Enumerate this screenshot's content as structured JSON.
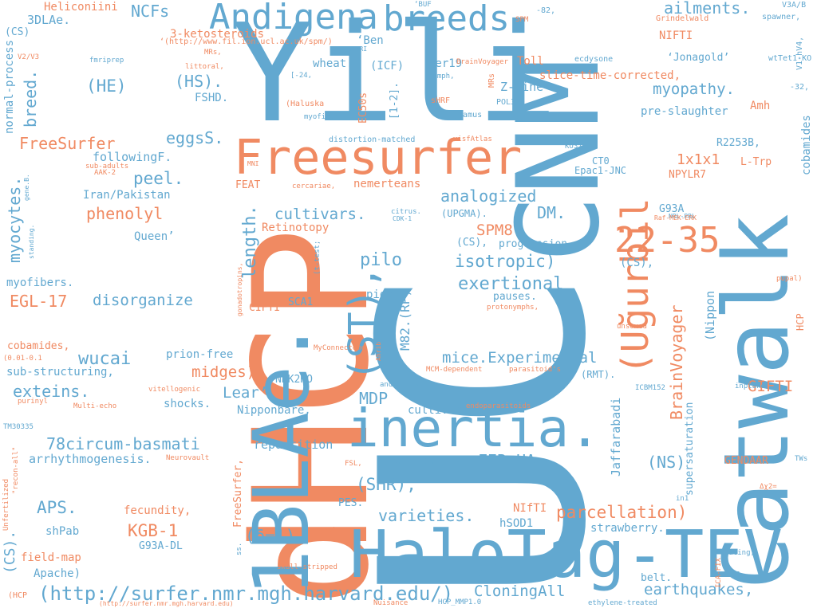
{
  "palette": {
    "orange": "#f08a62",
    "blue": "#62a8d0"
  },
  "words": [
    {
      "id": "w1",
      "text": "dHCP",
      "color": "orange"
    },
    {
      "id": "w2",
      "text": "UC",
      "color": "blue"
    },
    {
      "id": "w3",
      "text": "Catwalk",
      "color": "blue"
    },
    {
      "id": "w4",
      "text": "Yili",
      "color": "blue"
    },
    {
      "id": "w5",
      "text": "CNM",
      "color": "blue"
    },
    {
      "id": "w6",
      "text": "1BLAe.",
      "color": "blue"
    },
    {
      "id": "w7",
      "text": "HaloTag-TEV",
      "color": "blue"
    },
    {
      "id": "w8",
      "text": "Freesurfer",
      "color": "orange"
    },
    {
      "id": "w9",
      "text": "inertia.",
      "color": "blue"
    },
    {
      "id": "w10",
      "text": "Andigena",
      "color": "blue"
    },
    {
      "id": "w11",
      "text": "breeds.",
      "color": "blue"
    },
    {
      "id": "w12",
      "text": "(ST),",
      "color": "blue"
    },
    {
      "id": "w13",
      "text": "(Uğurbil",
      "color": "orange"
    },
    {
      "id": "w14",
      "text": "22-35",
      "color": "orange"
    },
    {
      "id": "w15",
      "text": "length.",
      "color": "blue"
    },
    {
      "id": "w16",
      "text": "(http://surfer.nmr.mgh.harvard.edu/)",
      "color": "blue"
    },
    {
      "id": "w17",
      "text": "78circum-basmati",
      "color": "blue"
    },
    {
      "id": "w18",
      "text": "isotropic)",
      "color": "blue"
    },
    {
      "id": "w19",
      "text": "exertional",
      "color": "blue"
    },
    {
      "id": "w20",
      "text": "parcellation)",
      "color": "orange"
    },
    {
      "id": "w21",
      "text": "mice.Experimental",
      "color": "blue"
    },
    {
      "id": "w22",
      "text": "analogized",
      "color": "blue"
    },
    {
      "id": "w23",
      "text": "cultivars.",
      "color": "blue"
    },
    {
      "id": "w24",
      "text": "disorganize",
      "color": "blue"
    },
    {
      "id": "w25",
      "text": "exteins.",
      "color": "blue"
    },
    {
      "id": "w26",
      "text": "wucai",
      "color": "blue"
    },
    {
      "id": "w27",
      "text": "FreeSurfer",
      "color": "orange"
    },
    {
      "id": "w28",
      "text": "phenolyl",
      "color": "orange"
    },
    {
      "id": "w29",
      "text": "peel.",
      "color": "blue"
    },
    {
      "id": "w30",
      "text": "eggsS.",
      "color": "blue"
    },
    {
      "id": "w31",
      "text": "(HS).",
      "color": "blue"
    },
    {
      "id": "w32",
      "text": "(HE)",
      "color": "blue"
    },
    {
      "id": "w33",
      "text": "NCFs",
      "color": "blue"
    },
    {
      "id": "w34",
      "text": "ailments.",
      "color": "blue"
    },
    {
      "id": "w35",
      "text": "myopathy.",
      "color": "blue"
    },
    {
      "id": "w36",
      "text": "BrainVoyager",
      "color": "orange"
    },
    {
      "id": "w37",
      "text": "earthquakes,",
      "color": "blue"
    },
    {
      "id": "w38",
      "text": "CloningAll",
      "color": "blue"
    },
    {
      "id": "w39",
      "text": "varieties.",
      "color": "blue"
    },
    {
      "id": "w40",
      "text": "(SHR),",
      "color": "blue"
    },
    {
      "id": "w41",
      "text": "FER-HA",
      "color": "blue"
    },
    {
      "id": "w42",
      "text": "KGB-1",
      "color": "orange"
    },
    {
      "id": "w43",
      "text": "(δ=1)",
      "color": "blue"
    },
    {
      "id": "w44",
      "text": "APS.",
      "color": "blue"
    },
    {
      "id": "w45",
      "text": "EGL-17",
      "color": "orange"
    },
    {
      "id": "w46",
      "text": "myocytes.",
      "color": "blue"
    },
    {
      "id": "w47",
      "text": "breed.",
      "color": "blue"
    },
    {
      "id": "w48",
      "text": "MDP",
      "color": "blue"
    },
    {
      "id": "w49",
      "text": "pilo",
      "color": "blue"
    },
    {
      "id": "w50",
      "text": "SPM8",
      "color": "orange"
    },
    {
      "id": "w51",
      "text": "DM.",
      "color": "blue"
    },
    {
      "id": "w52",
      "text": "1x1x1",
      "color": "orange"
    },
    {
      "id": "w53",
      "text": "GIFTI",
      "color": "orange"
    },
    {
      "id": "w54",
      "text": "(NS)",
      "color": "blue"
    },
    {
      "id": "w55",
      "text": "midges)",
      "color": "orange"
    },
    {
      "id": "w56",
      "text": "Lear’,",
      "color": "blue"
    },
    {
      "id": "w57",
      "text": "M82.(RP)",
      "color": "blue"
    },
    {
      "id": "w58",
      "text": "(CS).",
      "color": "blue"
    },
    {
      "id": "w59",
      "text": "(CS),",
      "color": "blue"
    },
    {
      "id": "w60",
      "text": "Retinotopy",
      "color": "orange"
    },
    {
      "id": "w61",
      "text": "Jaffarabadi",
      "color": "blue"
    },
    {
      "id": "w62",
      "text": "supersaturation",
      "color": "blue"
    },
    {
      "id": "w63",
      "text": "(Nippon",
      "color": "blue"
    },
    {
      "id": "w64",
      "text": "cobamides",
      "color": "blue"
    },
    {
      "id": "w65",
      "text": "Heliconiini",
      "color": "orange"
    },
    {
      "id": "w66",
      "text": "3DLAe.",
      "color": "blue"
    },
    {
      "id": "w67",
      "text": "3-ketosteroids",
      "color": "orange"
    },
    {
      "id": "w68",
      "text": "normal-process",
      "color": "blue"
    },
    {
      "id": "w69",
      "text": "(CS)",
      "color": "blue"
    },
    {
      "id": "w70",
      "text": "FSHD.",
      "color": "blue"
    },
    {
      "id": "w71",
      "text": "followingF.",
      "color": "blue"
    },
    {
      "id": "w72",
      "text": "Iran/Pakistan",
      "color": "blue"
    },
    {
      "id": "w73",
      "text": "Queen’",
      "color": "blue"
    },
    {
      "id": "w74",
      "text": "myofibers.",
      "color": "blue"
    },
    {
      "id": "w75",
      "text": "cobamides,",
      "color": "orange"
    },
    {
      "id": "w76",
      "text": "sub-structuring,",
      "color": "blue"
    },
    {
      "id": "w77",
      "text": "prion-free",
      "color": "blue"
    },
    {
      "id": "w78",
      "text": "shocks.",
      "color": "blue"
    },
    {
      "id": "w79",
      "text": "arrhythmogenesis.",
      "color": "blue"
    },
    {
      "id": "w80",
      "text": "fecundity,",
      "color": "orange"
    },
    {
      "id": "w81",
      "text": "shPab",
      "color": "blue"
    },
    {
      "id": "w82",
      "text": "G93A-DL",
      "color": "blue"
    },
    {
      "id": "w83",
      "text": "field-map",
      "color": "orange"
    },
    {
      "id": "w84",
      "text": "Apache)",
      "color": "blue"
    },
    {
      "id": "w85",
      "text": "NIFTI",
      "color": "orange"
    },
    {
      "id": "w86",
      "text": "Toll",
      "color": "orange"
    },
    {
      "id": "w87",
      "text": "slice-time-corrected,",
      "color": "orange"
    },
    {
      "id": "w88",
      "text": "Z-line",
      "color": "blue"
    },
    {
      "id": "w89",
      "text": "pre-slaughter",
      "color": "blue"
    },
    {
      "id": "w90",
      "text": "Amh",
      "color": "orange"
    },
    {
      "id": "w91",
      "text": "R2253B,",
      "color": "blue"
    },
    {
      "id": "w92",
      "text": "L-Trp",
      "color": "orange"
    },
    {
      "id": "w93",
      "text": "NPYLR7",
      "color": "orange"
    },
    {
      "id": "w94",
      "text": "Epac1-JNC",
      "color": "blue"
    },
    {
      "id": "w95",
      "text": "CT0",
      "color": "blue"
    },
    {
      "id": "w96",
      "text": "G93A",
      "color": "blue"
    },
    {
      "id": "w97",
      "text": "(CS),",
      "color": "blue"
    },
    {
      "id": "w98",
      "text": "progression.,",
      "color": "blue"
    },
    {
      "id": "w99",
      "text": "pauses.",
      "color": "blue"
    },
    {
      "id": "w100",
      "text": "pigs.",
      "color": "blue"
    },
    {
      "id": "w101",
      "text": "SCA1",
      "color": "blue"
    },
    {
      "id": "w102",
      "text": "CIFTI",
      "color": "orange"
    },
    {
      "id": "w103",
      "text": "NRK2KO",
      "color": "blue"
    },
    {
      "id": "w104",
      "text": "Nipponbare,",
      "color": "blue"
    },
    {
      "id": "w105",
      "text": "cultivar.",
      "color": "blue"
    },
    {
      "id": "w106",
      "text": "repartition",
      "color": "blue"
    },
    {
      "id": "w107",
      "text": "represent.",
      "color": "blue"
    },
    {
      "id": "w108",
      "text": "PES.",
      "color": "blue"
    },
    {
      "id": "w109",
      "text": "NIfTI",
      "color": "orange"
    },
    {
      "id": "w110",
      "text": "hSOD1",
      "color": "blue"
    },
    {
      "id": "w111",
      "text": "strawberry.",
      "color": "blue"
    },
    {
      "id": "w112",
      "text": "belt.",
      "color": "blue"
    },
    {
      "id": "w113",
      "text": "GENDAAR",
      "color": "orange"
    },
    {
      "id": "w114",
      "text": "(RMT).",
      "color": "blue"
    },
    {
      "id": "w115",
      "text": "HCP",
      "color": "orange"
    },
    {
      "id": "w116",
      "text": "FreeSurfer,",
      "color": "orange"
    },
    {
      "id": "w117",
      "text": "nemerteans",
      "color": "orange"
    },
    {
      "id": "w118",
      "text": "(UPGMA).",
      "color": "blue"
    },
    {
      "id": "w119",
      "text": "FEAT",
      "color": "orange"
    },
    {
      "id": "w120",
      "text": "wheat.",
      "color": "blue"
    },
    {
      "id": "w121",
      "text": "(ICF)",
      "color": "blue"
    },
    {
      "id": "w122",
      "text": "der19",
      "color": "blue"
    },
    {
      "id": "w123",
      "text": "‘Ben",
      "color": "blue"
    },
    {
      "id": "w124",
      "text": "EC50s",
      "color": "orange"
    },
    {
      "id": "w125",
      "text": "[1-2].",
      "color": "blue"
    },
    {
      "id": "w126",
      "text": "‘Jonagold’",
      "color": "blue"
    },
    {
      "id": "w127",
      "text": "‘BUF",
      "color": "blue"
    },
    {
      "id": "w128",
      "text": "MRs",
      "color": "orange"
    },
    {
      "id": "w129",
      "text": "‘(http://www.fil.ion.ucl.ac.uk/spm/)",
      "color": "orange"
    },
    {
      "id": "w130",
      "text": "V3A/B",
      "color": "blue"
    },
    {
      "id": "w131",
      "text": "spawner,",
      "color": "blue"
    },
    {
      "id": "w132",
      "text": "V1-hV4,",
      "color": "blue"
    },
    {
      "id": "w133",
      "text": "wtTet1-KO",
      "color": "blue"
    },
    {
      "id": "w134",
      "text": "-32,",
      "color": "blue"
    },
    {
      "id": "w135",
      "text": "-82,",
      "color": "blue"
    },
    {
      "id": "w136",
      "text": "SPM",
      "color": "orange"
    },
    {
      "id": "w137",
      "text": "Grindelwald",
      "color": "orange"
    },
    {
      "id": "w138",
      "text": "ecdysone",
      "color": "blue"
    },
    {
      "id": "w139",
      "text": "BrainVoyager",
      "color": "orange"
    },
    {
      "id": "w140",
      "text": "nymph,",
      "color": "blue"
    },
    {
      "id": "w141",
      "text": "sHRF",
      "color": "orange"
    },
    {
      "id": "w142",
      "text": "POL32",
      "color": "blue"
    },
    {
      "id": "w143",
      "text": "Pyramus",
      "color": "blue"
    },
    {
      "id": "w144",
      "text": "Prog",
      "color": "blue"
    },
    {
      "id": "w145",
      "text": "visfAtlas",
      "color": "orange"
    },
    {
      "id": "w146",
      "text": "distortion-matched",
      "color": "blue"
    },
    {
      "id": "w147",
      "text": "KO37",
      "color": "blue"
    },
    {
      "id": "w148",
      "text": "myofiber.",
      "color": "blue"
    },
    {
      "id": "w149",
      "text": "(Haluska",
      "color": "orange"
    },
    {
      "id": "w150",
      "text": "[-24,",
      "color": "blue"
    },
    {
      "id": "w151",
      "text": "littoral,",
      "color": "orange"
    },
    {
      "id": "w152",
      "text": "MRs,",
      "color": "orange"
    },
    {
      "id": "w153",
      "text": "fmriprep",
      "color": "blue"
    },
    {
      "id": "w154",
      "text": "s-MRI",
      "color": "blue"
    },
    {
      "id": "w155",
      "text": "V2/V3",
      "color": "orange"
    },
    {
      "id": "w156",
      "text": "sub-adults",
      "color": "orange"
    },
    {
      "id": "w157",
      "text": "AAK-2",
      "color": "orange"
    },
    {
      "id": "w158",
      "text": "MNI",
      "color": "orange"
    },
    {
      "id": "w159",
      "text": "gene.B.",
      "color": "blue"
    },
    {
      "id": "w160",
      "text": "standing.",
      "color": "blue"
    },
    {
      "id": "w161",
      "text": "cercariae,",
      "color": "orange"
    },
    {
      "id": "w162",
      "text": "citrus.",
      "color": "blue"
    },
    {
      "id": "w163",
      "text": "CDK-1",
      "color": "blue"
    },
    {
      "id": "w164",
      "text": "(t-test;",
      "color": "blue"
    },
    {
      "id": "w165",
      "text": "gonadotropins,",
      "color": "orange"
    },
    {
      "id": "w166",
      "text": "NRL-PRL",
      "color": "blue"
    },
    {
      "id": "w167",
      "text": "Raf-MEK-ERK",
      "color": "orange"
    },
    {
      "id": "w168",
      "text": "protonymphs,",
      "color": "orange"
    },
    {
      "id": "w169",
      "text": "unsexed",
      "color": "orange"
    },
    {
      "id": "w170",
      "text": "pupal)",
      "color": "orange"
    },
    {
      "id": "w171",
      "text": "MyConnectome",
      "color": "orange"
    },
    {
      "id": "w172",
      "text": "Ahrib",
      "color": "orange"
    },
    {
      "id": "w173",
      "text": "MCM-dependent",
      "color": "orange"
    },
    {
      "id": "w174",
      "text": "parasitoid's",
      "color": "orange"
    },
    {
      "id": "w175",
      "text": "ICBM152",
      "color": "blue"
    },
    {
      "id": "w176",
      "text": "inplane",
      "color": "blue"
    },
    {
      "id": "w177",
      "text": "androgens",
      "color": "blue"
    },
    {
      "id": "w178",
      "text": "vitellogenic",
      "color": "orange"
    },
    {
      "id": "w179",
      "text": "endoparasitoids",
      "color": "orange"
    },
    {
      "id": "w180",
      "text": "Multi-echo",
      "color": "orange"
    },
    {
      "id": "w181",
      "text": "purinyl",
      "color": "orange"
    },
    {
      "id": "w182",
      "text": "(0.01-0.1",
      "color": "orange"
    },
    {
      "id": "w183",
      "text": "TM30335",
      "color": "blue"
    },
    {
      "id": "w184",
      "text": "Unfertilized",
      "color": "orange"
    },
    {
      "id": "w185",
      "text": "\"recon-all\"",
      "color": "orange"
    },
    {
      "id": "w186",
      "text": "Neurovault",
      "color": "orange"
    },
    {
      "id": "w187",
      "text": "FSL,",
      "color": "orange"
    },
    {
      "id": "w188",
      "text": "OFA)",
      "color": "orange"
    },
    {
      "id": "w189",
      "text": "skull-stripped",
      "color": "orange"
    },
    {
      "id": "w190",
      "text": "ss.",
      "color": "blue"
    },
    {
      "id": "w191",
      "text": "(HCP",
      "color": "orange"
    },
    {
      "id": "w192",
      "text": "(http://surfer.nmr.mgh.harvard.edu)",
      "color": "orange"
    },
    {
      "id": "w193",
      "text": "Nuisance",
      "color": "orange"
    },
    {
      "id": "w194",
      "text": "HCP_MMP1.0",
      "color": "blue"
    },
    {
      "id": "w195",
      "text": "ethylene-treated",
      "color": "blue"
    },
    {
      "id": "w196",
      "text": "ICA-FIX",
      "color": "orange"
    },
    {
      "id": "w197",
      "text": "racing,",
      "color": "blue"
    },
    {
      "id": "w198",
      "text": "in1",
      "color": "blue"
    },
    {
      "id": "w199",
      "text": "Δχ2=",
      "color": "orange"
    },
    {
      "id": "w200",
      "text": "TWs",
      "color": "blue"
    }
  ]
}
